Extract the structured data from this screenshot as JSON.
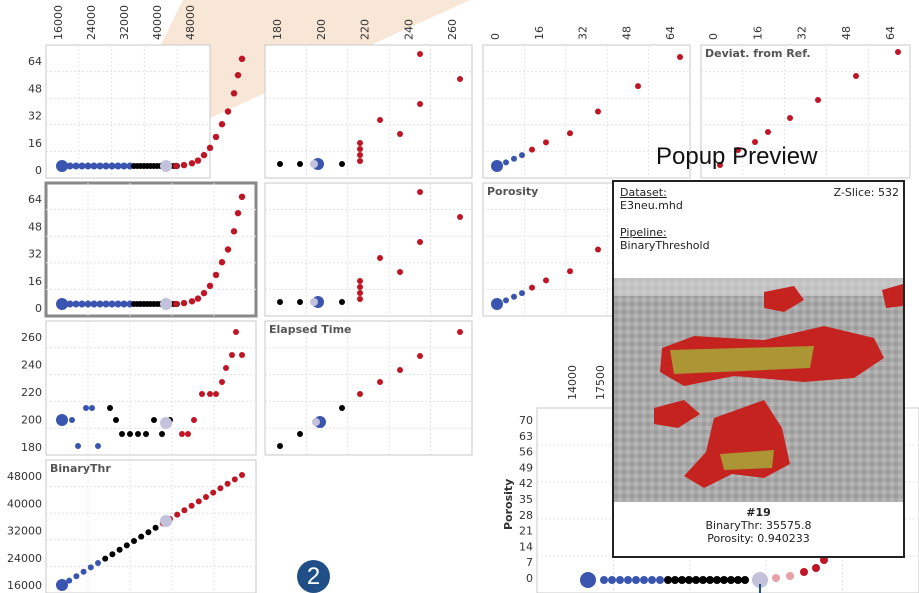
{
  "popup": {
    "title": "Popup Preview",
    "dataset_label": "Dataset:",
    "dataset_value": "E3neu.mhd",
    "zslice": "Z-Slice: 532",
    "pipeline_label": "Pipeline:",
    "pipeline_value": "BinaryThreshold",
    "id": "#19",
    "binarythr": "BinaryThr: 35575.8",
    "porosity": "Porosity: 0.940233"
  },
  "badge": "2",
  "colors": {
    "blue": "#3a55b0",
    "black": "#000000",
    "red": "#c01525",
    "highlight": "#c2c2dc",
    "pink": "#e8a0a8"
  },
  "chart_data": [
    {
      "type": "scatter",
      "cell": "row1-col1",
      "x_ticks": [
        "16000",
        "24000",
        "32000",
        "40000",
        "48000"
      ],
      "y_ticks": [
        "64",
        "48",
        "32",
        "16",
        "0"
      ]
    },
    {
      "type": "scatter",
      "cell": "row1-col2",
      "x_ticks": [
        "180",
        "200",
        "220",
        "240",
        "260"
      ]
    },
    {
      "type": "scatter",
      "cell": "row1-col3",
      "x_ticks": [
        "0",
        "16",
        "32",
        "48",
        "64"
      ]
    },
    {
      "type": "scatter",
      "cell": "row1-col4",
      "title": "Deviat. from Ref.",
      "x_ticks": [
        "0",
        "16",
        "32",
        "48",
        "64"
      ]
    },
    {
      "type": "scatter",
      "cell": "row2-col1",
      "y_ticks": [
        "64",
        "48",
        "32",
        "16",
        "0"
      ]
    },
    {
      "type": "scatter",
      "cell": "row2-col3",
      "title": "Porosity"
    },
    {
      "type": "scatter",
      "cell": "row3-col1",
      "y_ticks": [
        "260",
        "240",
        "220",
        "200",
        "180"
      ]
    },
    {
      "type": "scatter",
      "cell": "row3-col2",
      "title": "Elapsed Time"
    },
    {
      "type": "scatter",
      "cell": "row4-col1",
      "title": "BinaryThr",
      "y_ticks": [
        "48000",
        "40000",
        "32000",
        "24000",
        "16000"
      ]
    },
    {
      "type": "scatter",
      "cell": "zoom",
      "ylabel": "Porosity",
      "x_ticks": [
        "14000",
        "17500"
      ],
      "y_ticks": [
        "70",
        "63",
        "56",
        "49",
        "42",
        "35",
        "28",
        "21",
        "14",
        "7",
        "0"
      ]
    }
  ]
}
